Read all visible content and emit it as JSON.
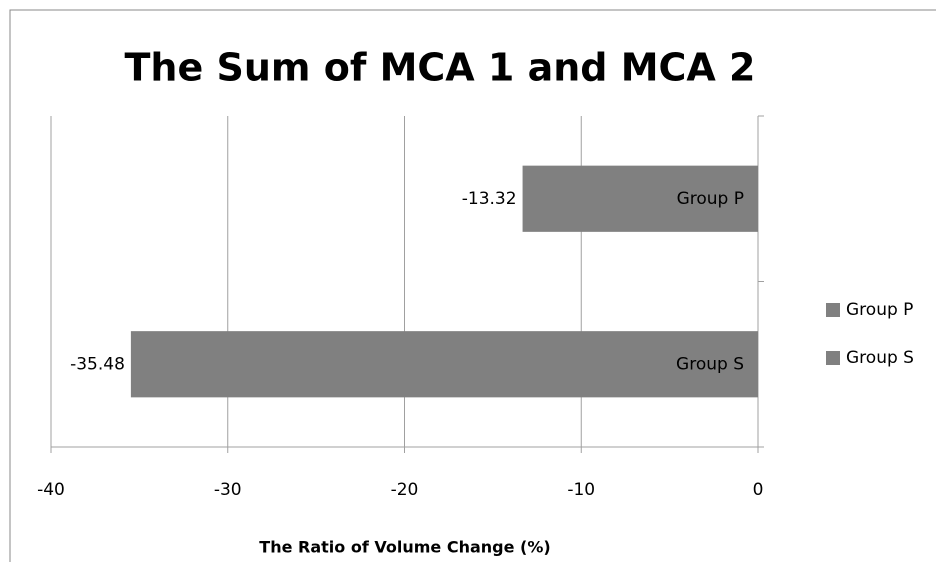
{
  "chart_data": {
    "type": "barh",
    "title": "The Sum of MCA 1 and MCA 2",
    "xlabel": "The Ratio of Volume Change (%)",
    "categories": [
      null
    ],
    "series": [
      {
        "name": "Group P",
        "color": "#808080",
        "values": [
          -13.32
        ]
      },
      {
        "name": "Group S",
        "color": "#808080",
        "values": [
          -35.48
        ]
      }
    ],
    "xlim": [
      -40,
      0
    ],
    "xticks": [
      -40,
      -30,
      -20,
      -10,
      0
    ],
    "grid": true,
    "legend": "right"
  }
}
